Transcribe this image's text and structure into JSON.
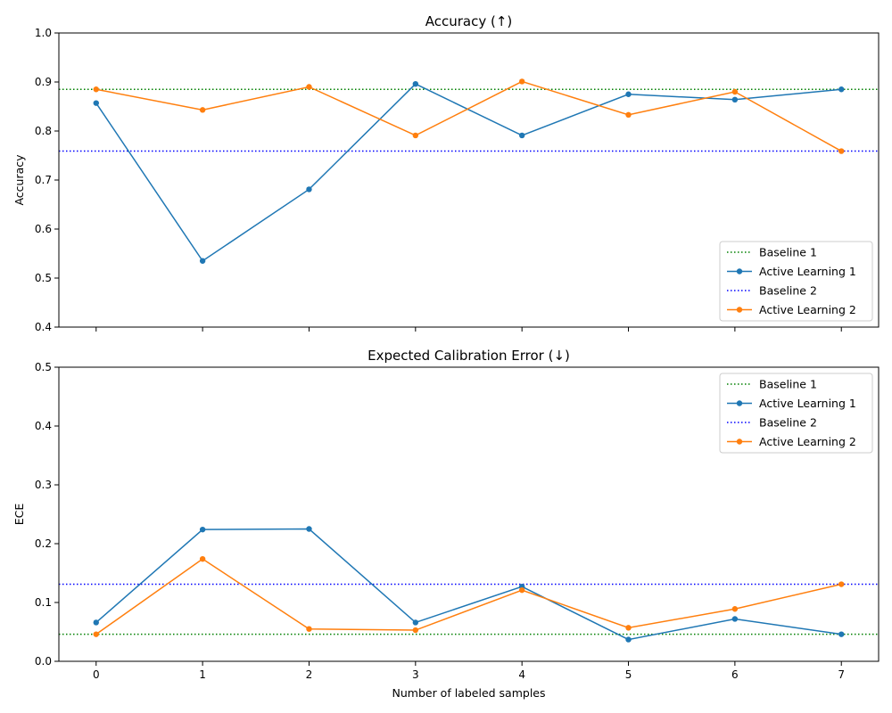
{
  "chart_data": [
    {
      "type": "line",
      "title": "Accuracy (↑)",
      "xlabel": "",
      "ylabel": "Accuracy",
      "x": [
        0,
        1,
        2,
        3,
        4,
        5,
        6,
        7
      ],
      "xlim": [
        -0.35,
        7.35
      ],
      "ylim": [
        0.4,
        1.0
      ],
      "yticks": [
        "0.4",
        "0.5",
        "0.6",
        "0.7",
        "0.8",
        "0.9",
        "1.0"
      ],
      "ytick_values": [
        0.4,
        0.5,
        0.6,
        0.7,
        0.8,
        0.9,
        1.0
      ],
      "xtick_labels_shown": false,
      "grid": false,
      "legend_position": "lower-right",
      "baselines": [
        {
          "name": "Baseline 1",
          "value": 0.885,
          "color": "#008000",
          "style": "dotted"
        },
        {
          "name": "Baseline 2",
          "value": 0.759,
          "color": "#0000ff",
          "style": "dotted"
        }
      ],
      "series": [
        {
          "name": "Active Learning 1",
          "color": "#1f77b4",
          "values": [
            0.857,
            0.535,
            0.681,
            0.896,
            0.791,
            0.875,
            0.864,
            0.885
          ]
        },
        {
          "name": "Active Learning 2",
          "color": "#ff7f0e",
          "values": [
            0.885,
            0.843,
            0.89,
            0.791,
            0.901,
            0.833,
            0.88,
            0.759
          ]
        }
      ],
      "legend": [
        "Baseline 1",
        "Active Learning 1",
        "Baseline 2",
        "Active Learning 2"
      ]
    },
    {
      "type": "line",
      "title": "Expected Calibration Error (↓)",
      "xlabel": "Number of labeled samples",
      "ylabel": "ECE",
      "x": [
        0,
        1,
        2,
        3,
        4,
        5,
        6,
        7
      ],
      "xlim": [
        -0.35,
        7.35
      ],
      "ylim": [
        0.0,
        0.5
      ],
      "xticks": [
        "0",
        "1",
        "2",
        "3",
        "4",
        "5",
        "6",
        "7"
      ],
      "yticks": [
        "0.0",
        "0.1",
        "0.2",
        "0.3",
        "0.4",
        "0.5"
      ],
      "ytick_values": [
        0.0,
        0.1,
        0.2,
        0.3,
        0.4,
        0.5
      ],
      "xtick_labels_shown": true,
      "grid": false,
      "legend_position": "upper-right",
      "baselines": [
        {
          "name": "Baseline 1",
          "value": 0.046,
          "color": "#008000",
          "style": "dotted"
        },
        {
          "name": "Baseline 2",
          "value": 0.131,
          "color": "#0000ff",
          "style": "dotted"
        }
      ],
      "series": [
        {
          "name": "Active Learning 1",
          "color": "#1f77b4",
          "values": [
            0.066,
            0.224,
            0.225,
            0.066,
            0.127,
            0.037,
            0.072,
            0.046
          ]
        },
        {
          "name": "Active Learning 2",
          "color": "#ff7f0e",
          "values": [
            0.046,
            0.174,
            0.055,
            0.053,
            0.121,
            0.057,
            0.089,
            0.131
          ]
        }
      ],
      "legend": [
        "Baseline 1",
        "Active Learning 1",
        "Baseline 2",
        "Active Learning 2"
      ]
    }
  ]
}
